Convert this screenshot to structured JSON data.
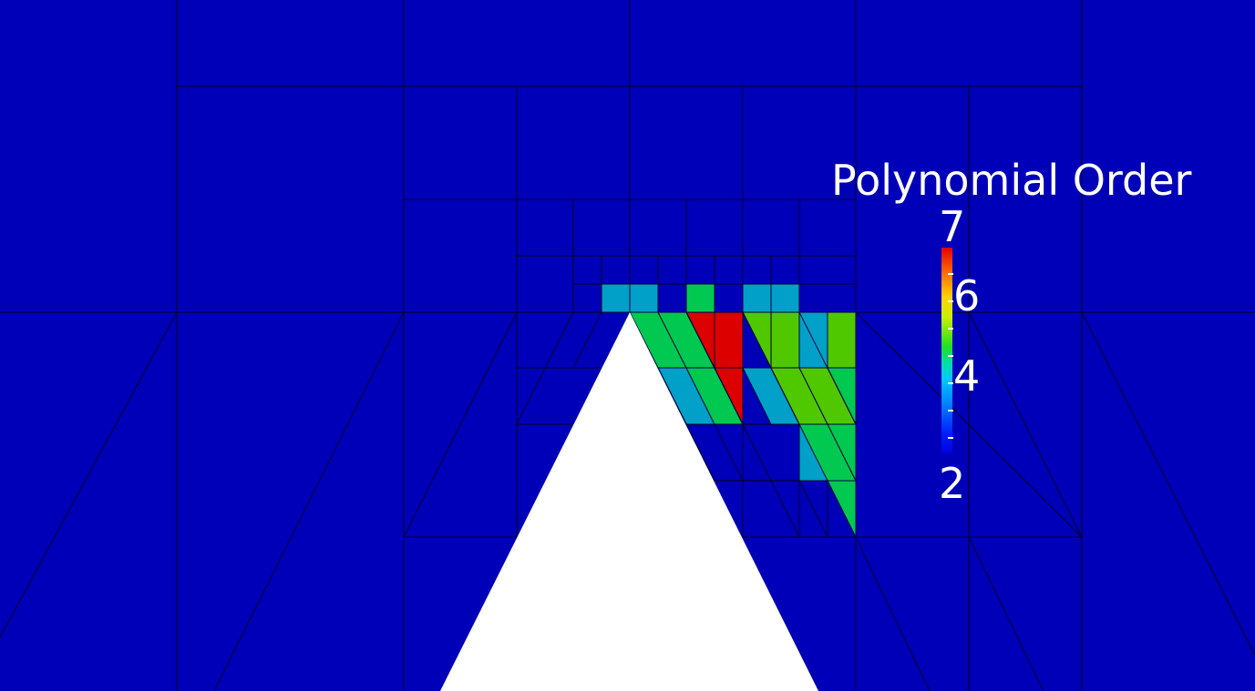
{
  "colors": {
    "background": "#0000b8",
    "mesh_line": "#00003a",
    "obstacle": "#ffffff",
    "order_3": "#00a0c8",
    "order_4": "#00c850",
    "order_5": "#50c800",
    "order_7": "#dc0000"
  },
  "legend": {
    "title": "Polynomial Order",
    "labels": [
      "7",
      "6",
      "4",
      "2"
    ]
  }
}
